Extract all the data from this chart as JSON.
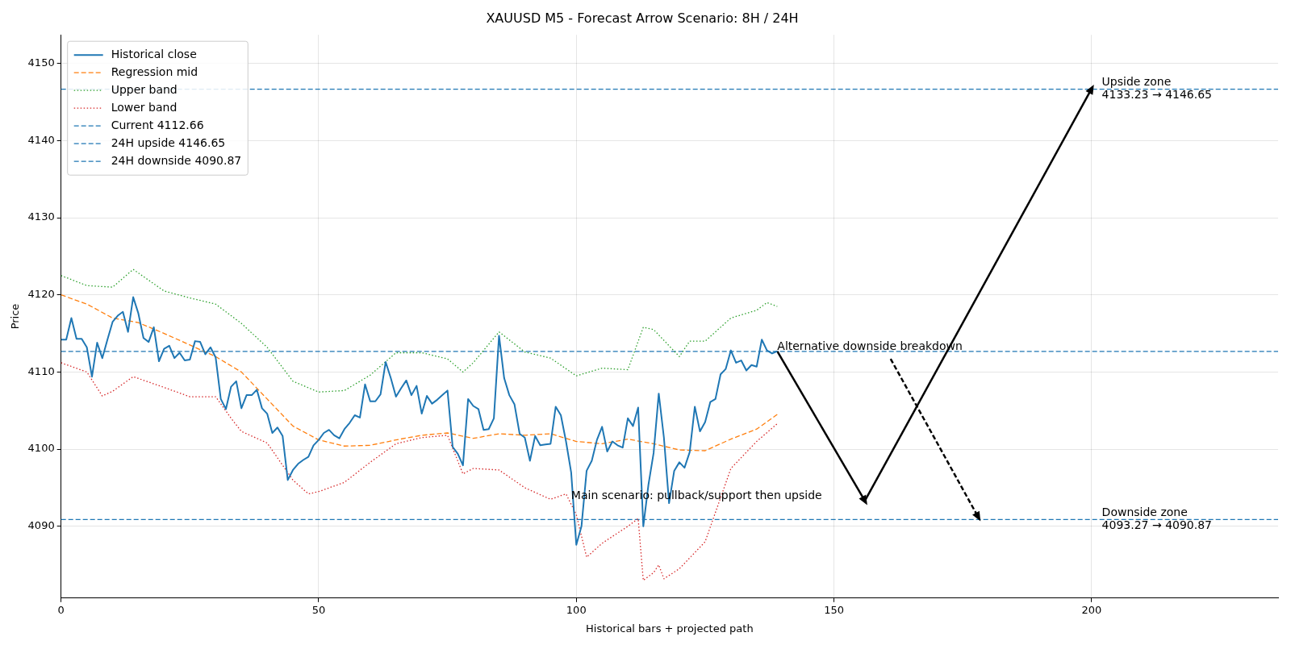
{
  "chart_data": {
    "type": "line",
    "title": "XAUUSD M5 - Forecast Arrow Scenario: 8H / 24H",
    "xlabel": "Historical bars + projected path",
    "ylabel": "Price",
    "x": [
      0,
      1,
      2,
      3,
      4,
      5,
      6,
      7,
      8,
      9,
      10,
      11,
      12,
      13,
      14,
      15,
      16,
      17,
      18,
      19,
      20,
      21,
      22,
      23,
      24,
      25,
      26,
      27,
      28,
      29,
      30,
      31,
      32,
      33,
      34,
      35,
      36,
      37,
      38,
      39,
      40,
      41,
      42,
      43,
      44,
      45,
      46,
      47,
      48,
      49,
      50,
      51,
      52,
      53,
      54,
      55,
      56,
      57,
      58,
      59,
      60,
      61,
      62,
      63,
      64,
      65,
      66,
      67,
      68,
      69,
      70,
      71,
      72,
      73,
      74,
      75,
      76,
      77,
      78,
      79,
      80,
      81,
      82,
      83,
      84,
      85,
      86,
      87,
      88,
      89,
      90,
      91,
      92,
      93,
      94,
      95,
      96,
      97,
      98,
      99,
      100,
      101,
      102,
      103,
      104,
      105,
      106,
      107,
      108,
      109,
      110,
      111,
      112,
      113,
      114,
      115,
      116,
      117,
      118,
      119,
      120,
      121,
      122,
      123,
      124,
      125,
      126,
      127,
      128,
      129,
      130,
      131,
      132,
      133,
      134,
      135,
      136,
      137,
      138,
      139
    ],
    "series": [
      {
        "name": "Historical close",
        "color": "#1f77b4",
        "line_style": "solid",
        "values": [
          4114.2,
          4114.2,
          4117.0,
          4114.3,
          4114.3,
          4113.2,
          4109.4,
          4113.8,
          4111.8,
          4114.2,
          4116.5,
          4117.3,
          4117.8,
          4115.2,
          4119.7,
          4117.6,
          4114.4,
          4113.9,
          4115.8,
          4111.4,
          4113.0,
          4113.4,
          4111.8,
          4112.5,
          4111.5,
          4111.6,
          4114.0,
          4113.9,
          4112.3,
          4113.2,
          4111.9,
          4106.5,
          4105.2,
          4108.1,
          4108.8,
          4105.3,
          4107.0,
          4107.0,
          4107.7,
          4105.3,
          4104.6,
          4102.1,
          4102.8,
          4101.7,
          4096.0,
          4097.3,
          4098.1,
          4098.6,
          4099.0,
          4100.5,
          4101.2,
          4102.1,
          4102.5,
          4101.8,
          4101.4,
          4102.6,
          4103.4,
          4104.4,
          4104.1,
          4108.4,
          4106.2,
          4106.2,
          4107.1,
          4111.3,
          4109.2,
          4106.8,
          4107.9,
          4108.9,
          4107.0,
          4108.2,
          4104.6,
          4106.9,
          4105.9,
          4106.4,
          4107.0,
          4107.6,
          4100.3,
          4099.4,
          4097.9,
          4106.5,
          4105.6,
          4105.2,
          4102.5,
          4102.6,
          4104.0,
          4114.7,
          4109.2,
          4107.0,
          4105.8,
          4102.0,
          4101.5,
          4098.5,
          4101.7,
          4100.5,
          4100.6,
          4100.7,
          4105.5,
          4104.4,
          4101.0,
          4097.0,
          4087.6,
          4090.0,
          4097.2,
          4098.5,
          4101.2,
          4102.9,
          4099.7,
          4101.0,
          4100.5,
          4100.2,
          4104.0,
          4103.0,
          4105.4,
          4090.0,
          4095.4,
          4099.5,
          4107.2,
          4101.5,
          4093.0,
          4097.2,
          4098.3,
          4097.6,
          4099.6,
          4105.5,
          4102.3,
          4103.5,
          4106.1,
          4106.5,
          4109.7,
          4110.4,
          4112.8,
          4111.2,
          4111.5,
          4110.2,
          4110.9,
          4110.7,
          4114.2,
          4112.8,
          4112.4,
          4112.7
        ]
      },
      {
        "name": "Regression mid",
        "color": "#ff7f0e",
        "line_style": "dashed",
        "x": [
          0,
          5,
          10,
          15,
          20,
          25,
          30,
          35,
          40,
          45,
          50,
          55,
          60,
          65,
          70,
          75,
          80,
          85,
          90,
          95,
          100,
          105,
          110,
          115,
          120,
          125,
          130,
          135,
          139
        ],
        "values": [
          4120.0,
          4118.8,
          4117.0,
          4116.4,
          4115.0,
          4113.5,
          4112.0,
          4110.0,
          4106.5,
          4103.0,
          4101.2,
          4100.4,
          4100.5,
          4101.2,
          4101.8,
          4102.1,
          4101.4,
          4102.0,
          4101.8,
          4102.0,
          4101.0,
          4100.7,
          4101.3,
          4100.7,
          4099.9,
          4099.8,
          4101.3,
          4102.6,
          4104.5
        ]
      },
      {
        "name": "Upper band",
        "color": "#2ca02c",
        "line_style": "dotted",
        "x": [
          0,
          5,
          10,
          14,
          20,
          25,
          30,
          35,
          40,
          45,
          50,
          55,
          60,
          65,
          70,
          75,
          78,
          80,
          85,
          90,
          95,
          100,
          105,
          110,
          113,
          115,
          120,
          122,
          125,
          130,
          135,
          137,
          139
        ],
        "values": [
          4122.5,
          4121.2,
          4121.0,
          4123.3,
          4120.5,
          4119.6,
          4118.8,
          4116.3,
          4113.2,
          4108.8,
          4107.4,
          4107.6,
          4109.6,
          4112.5,
          4112.5,
          4111.7,
          4110.0,
          4111.2,
          4115.2,
          4112.6,
          4111.8,
          4109.5,
          4110.5,
          4110.3,
          4115.8,
          4115.5,
          4112.0,
          4114.0,
          4114.0,
          4117.0,
          4118.0,
          4119.0,
          4118.5
        ]
      },
      {
        "name": "Lower band",
        "color": "#d62728",
        "line_style": "dotted",
        "x": [
          0,
          5,
          8,
          10,
          14,
          20,
          25,
          30,
          33,
          35,
          40,
          45,
          48,
          50,
          55,
          60,
          65,
          70,
          75,
          78,
          80,
          85,
          90,
          95,
          98,
          100,
          102,
          105,
          110,
          112,
          113,
          115,
          116,
          117,
          120,
          125,
          130,
          135,
          139
        ],
        "values": [
          4111.2,
          4110.0,
          4106.9,
          4107.5,
          4109.4,
          4108.0,
          4106.8,
          4106.8,
          4104.0,
          4102.3,
          4100.8,
          4096.0,
          4094.2,
          4094.5,
          4095.7,
          4098.3,
          4100.7,
          4101.5,
          4101.8,
          4096.8,
          4097.5,
          4097.3,
          4095.0,
          4093.5,
          4094.2,
          4091.5,
          4086.0,
          4087.8,
          4090.0,
          4091.0,
          4083.0,
          4084.0,
          4085.0,
          4083.2,
          4084.5,
          4088.0,
          4097.5,
          4101.0,
          4103.3
        ]
      },
      {
        "color": "#000000",
        "line_style": "solid",
        "x": [
          139,
          156
        ],
        "values": [
          4112.7,
          4093.3
        ]
      },
      {
        "color": "#000000",
        "line_style": "solid",
        "x": [
          156,
          200
        ],
        "values": [
          4093.3,
          4146.7
        ]
      },
      {
        "color": "#000000",
        "line_style": "dashed",
        "x": [
          161,
          178
        ],
        "values": [
          4111.7,
          4091.2
        ]
      }
    ],
    "ref_lines": [
      {
        "axis": "y",
        "value": 4112.66,
        "label": "Current 4112.66",
        "color": "#1f77b4",
        "line_style": "dashed"
      },
      {
        "axis": "y",
        "value": 4146.65,
        "label": "24H upside 4146.65",
        "color": "#1f77b4",
        "line_style": "dashed"
      },
      {
        "axis": "y",
        "value": 4090.87,
        "label": "24H downside 4090.87",
        "color": "#1f77b4",
        "line_style": "dashed"
      }
    ],
    "annotations": [
      {
        "text": "Alternative downside breakdown",
        "x": 139,
        "y": 4112.66
      },
      {
        "text": "Main scenario: pullback/support then upside",
        "x": 99,
        "y": 4093.27
      },
      {
        "text": "Upside zone\n4133.23 → 4146.65",
        "x": 202,
        "y": 4146.65
      },
      {
        "text": "Downside zone\n4093.27 → 4090.87",
        "x": 202,
        "y": 4090.87
      }
    ],
    "xlim": [
      0,
      236.2
    ],
    "ylim": [
      4080.7,
      4153.7
    ],
    "xticks": [
      0,
      50,
      100,
      150,
      200
    ],
    "yticks": [
      4090,
      4100,
      4110,
      4120,
      4130,
      4140,
      4150
    ],
    "grid": true,
    "legend": "top left"
  }
}
